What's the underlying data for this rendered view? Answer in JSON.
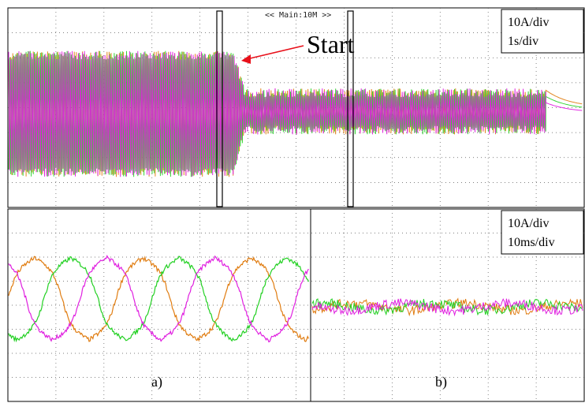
{
  "header": {
    "memory_label": "<< Main:10M >>"
  },
  "top_panel": {
    "scale_volts": "10A/div",
    "scale_time": "1s/div",
    "annotation": "Start",
    "colors": {
      "annotation": "#e8101a"
    }
  },
  "bottom_panel": {
    "scale_volts": "10A/div",
    "scale_time": "10ms/div",
    "left_caption": "a)",
    "right_caption": "b)"
  },
  "chart_data": [
    {
      "type": "line",
      "panel": "top",
      "series": [
        {
          "color": "#e07c10"
        },
        {
          "color": "#22d022"
        },
        {
          "color": "#e020e0"
        }
      ],
      "before_start": {
        "y_high_div": 2.1,
        "y_low_div": -2.6
      },
      "after_start": {
        "y_high_div": 0.6,
        "y_low_div": -0.9
      },
      "start_t_div": 4.7,
      "end_t_div": 11.2
    },
    {
      "type": "line",
      "panel": "bottom-a",
      "series": [
        {
          "color": "#e07c10",
          "phase_deg": 0
        },
        {
          "color": "#22d022",
          "phase_deg": 120
        },
        {
          "color": "#e020e0",
          "phase_deg": 240
        }
      ],
      "amplitude_div": 1.9,
      "period_div": 2.25
    },
    {
      "type": "line",
      "panel": "bottom-b",
      "series": [
        {
          "color": "#e07c10"
        },
        {
          "color": "#22d022"
        },
        {
          "color": "#e020e0"
        }
      ],
      "amplitude_div": 0.25
    }
  ]
}
